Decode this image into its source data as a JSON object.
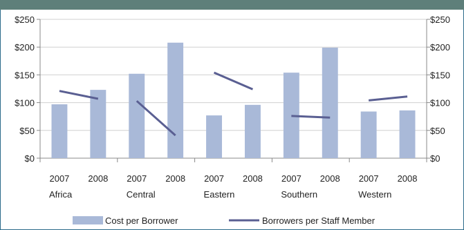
{
  "chart_data": {
    "type": "bar",
    "categories": [
      "2007",
      "2008",
      "2007",
      "2008",
      "2007",
      "2008",
      "2007",
      "2008",
      "2007",
      "2008"
    ],
    "groups": [
      "Africa",
      "Central",
      "Eastern",
      "Southern",
      "Western"
    ],
    "series": [
      {
        "name": "Cost per Borrower",
        "kind": "bar",
        "axis": "left",
        "color": "#a9b9d8",
        "values": [
          97,
          123,
          152,
          208,
          77,
          96,
          154,
          199,
          84,
          86
        ]
      },
      {
        "name": "Borrowers per Staff Member",
        "kind": "line",
        "axis": "right",
        "color": "#5a5f92",
        "segments": [
          {
            "group": "Africa",
            "values": [
              121,
              107
            ]
          },
          {
            "group": "Central",
            "values": [
              103,
              41
            ]
          },
          {
            "group": "Eastern",
            "values": [
              154,
              124
            ]
          },
          {
            "group": "Southern",
            "values": [
              76,
              73
            ]
          },
          {
            "group": "Western",
            "values": [
              104,
              111
            ]
          }
        ]
      }
    ],
    "y_left": {
      "min": 0,
      "max": 250,
      "ticks": [
        "$0",
        "$50",
        "$100",
        "$150",
        "$200",
        "$250"
      ]
    },
    "y_right": {
      "min": 0,
      "max": 250,
      "ticks": [
        "$0",
        "$50",
        "$100",
        "$150",
        "$200",
        "$250"
      ]
    },
    "grid": true,
    "legend_position": "bottom",
    "title": "",
    "xlabel": "",
    "ylabel": ""
  },
  "header_color": "#5e7f7a"
}
